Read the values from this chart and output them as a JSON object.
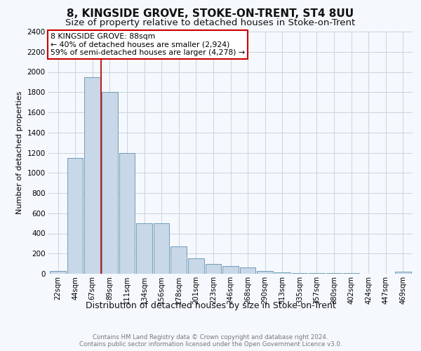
{
  "title": "8, KINGSIDE GROVE, STOKE-ON-TRENT, ST4 8UU",
  "subtitle": "Size of property relative to detached houses in Stoke-on-Trent",
  "xlabel": "Distribution of detached houses by size in Stoke-on-Trent",
  "ylabel": "Number of detached properties",
  "categories": [
    "22sqm",
    "44sqm",
    "67sqm",
    "89sqm",
    "111sqm",
    "134sqm",
    "156sqm",
    "178sqm",
    "201sqm",
    "223sqm",
    "246sqm",
    "268sqm",
    "290sqm",
    "313sqm",
    "335sqm",
    "357sqm",
    "380sqm",
    "402sqm",
    "424sqm",
    "447sqm",
    "469sqm"
  ],
  "values": [
    30,
    1150,
    1950,
    1800,
    1200,
    500,
    500,
    270,
    155,
    100,
    75,
    65,
    25,
    12,
    8,
    6,
    4,
    4,
    3,
    3,
    20
  ],
  "bar_color": "#c8d8e8",
  "bar_edge_color": "#6090b0",
  "vline_color": "#bb2222",
  "annotation_title": "8 KINGSIDE GROVE: 88sqm",
  "annotation_line1": "← 40% of detached houses are smaller (2,924)",
  "annotation_line2": "59% of semi-detached houses are larger (4,278) →",
  "annotation_box_color": "#cc0000",
  "ylim": [
    0,
    2400
  ],
  "yticks": [
    0,
    200,
    400,
    600,
    800,
    1000,
    1200,
    1400,
    1600,
    1800,
    2000,
    2200,
    2400
  ],
  "footer_line1": "Contains HM Land Registry data © Crown copyright and database right 2024.",
  "footer_line2": "Contains public sector information licensed under the Open Government Licence v3.0.",
  "title_fontsize": 11,
  "subtitle_fontsize": 9.5,
  "background_color": "#f5f8fc",
  "grid_color": "#c8d4e0"
}
